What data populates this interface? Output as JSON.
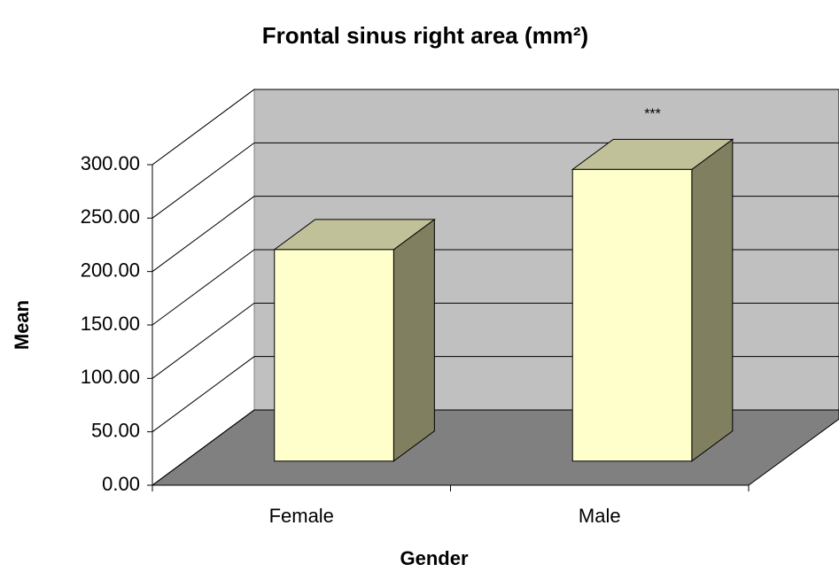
{
  "chart_data": {
    "type": "bar3d",
    "title": "Frontal sinus right area (mm²)",
    "x_label": "Gender",
    "y_label": "Mean",
    "categories": [
      "Female",
      "Male"
    ],
    "values": [
      198,
      273
    ],
    "color": "#ffffcc",
    "annotations": [
      {
        "text": "***",
        "category": 1
      }
    ],
    "ylim": [
      0,
      300
    ],
    "yticks": [
      {
        "value": 0,
        "label": "0.00"
      },
      {
        "value": 50,
        "label": "50.00"
      },
      {
        "value": 100,
        "label": "100.00"
      },
      {
        "value": 150,
        "label": "150.00"
      },
      {
        "value": 200,
        "label": "200.00"
      },
      {
        "value": 250,
        "label": "250.00"
      },
      {
        "value": 300,
        "label": "300.00"
      }
    ],
    "grid": true
  }
}
